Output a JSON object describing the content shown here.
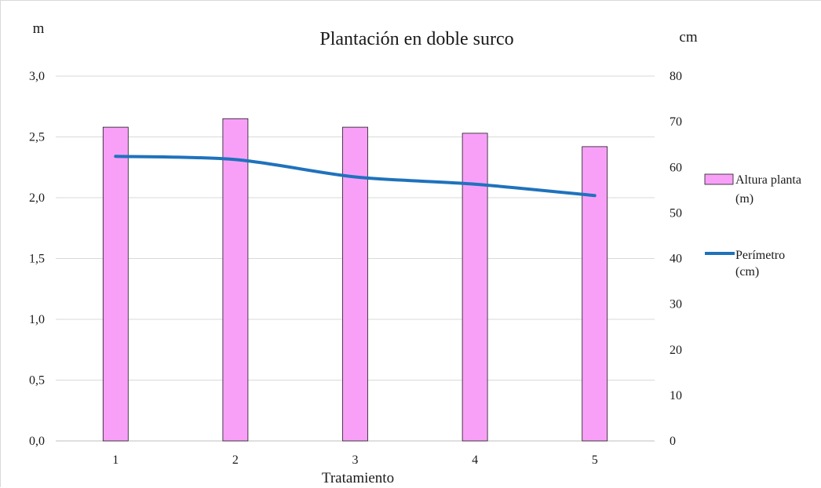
{
  "chart_data": {
    "type": "bar",
    "title": "Plantación en doble surco",
    "xlabel": "Tratamiento",
    "y_left_label": "m",
    "y_right_label": "cm",
    "categories": [
      "1",
      "2",
      "3",
      "4",
      "5"
    ],
    "y_left_range": [
      0,
      3.0
    ],
    "y_left_ticks": [
      "0,0",
      "0,5",
      "1,0",
      "1,5",
      "2,0",
      "2,5",
      "3,0"
    ],
    "y_right_range": [
      0,
      80
    ],
    "y_right_ticks": [
      "0",
      "10",
      "20",
      "30",
      "40",
      "50",
      "60",
      "70",
      "80"
    ],
    "grid": true,
    "legend_position": "right",
    "series": [
      {
        "name": "Altura planta (m)",
        "legend_lines": [
          "Altura planta",
          "(m)"
        ],
        "type": "bar",
        "axis": "left",
        "color": "#f8a0f8",
        "values": [
          2.58,
          2.65,
          2.58,
          2.53,
          2.42
        ]
      },
      {
        "name": "Perímetro (cm)",
        "legend_lines": [
          "Perímetro",
          "(cm)"
        ],
        "type": "line",
        "axis": "right",
        "color": "#1f72bc",
        "values": [
          62.4,
          61.7,
          57.9,
          56.3,
          53.8
        ]
      }
    ]
  }
}
